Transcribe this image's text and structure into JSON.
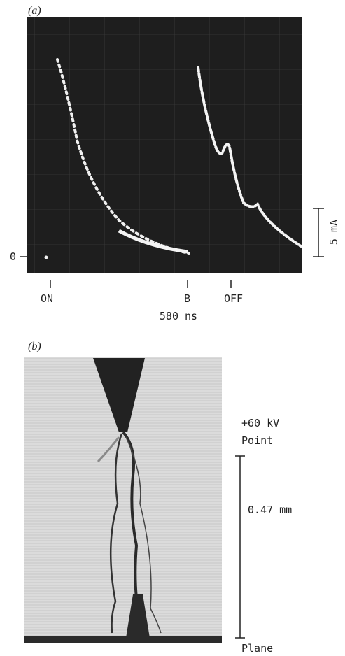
{
  "panel_a": {
    "label": "(a)",
    "zero_label": "0",
    "scale_label": "5 mA",
    "time_markers": [
      "ON",
      "B",
      "OFF"
    ],
    "time_scale": "580 ns"
  },
  "panel_b": {
    "label": "(b)",
    "voltage": "+60 kV",
    "point_label": "Point",
    "gap_label": "0.47 mm",
    "plane_label": "Plane"
  }
}
